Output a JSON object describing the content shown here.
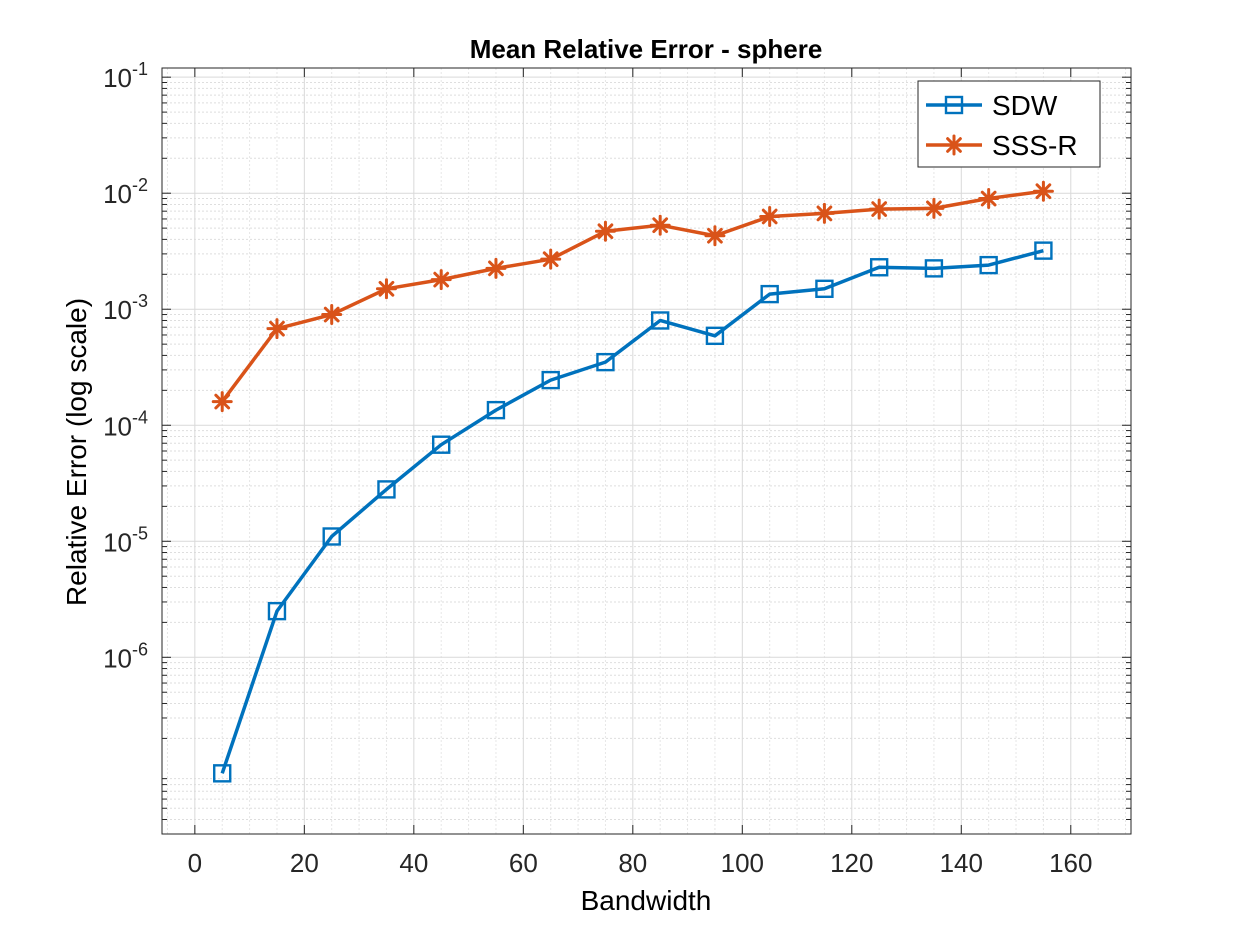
{
  "chart_data": {
    "type": "line",
    "title": "Mean Relative Error - sphere",
    "xlabel": "Bandwidth",
    "ylabel": "Relative Error (log scale)",
    "yscale": "log",
    "xlim": [
      -6,
      171
    ],
    "ylim": [
      3e-08,
      0.12
    ],
    "x_ticks": [
      {
        "value": 0,
        "label": "0"
      },
      {
        "value": 20,
        "label": "20"
      },
      {
        "value": 40,
        "label": "40"
      },
      {
        "value": 60,
        "label": "60"
      },
      {
        "value": 80,
        "label": "80"
      },
      {
        "value": 100,
        "label": "100"
      },
      {
        "value": 120,
        "label": "120"
      },
      {
        "value": 140,
        "label": "140"
      },
      {
        "value": 160,
        "label": "160"
      }
    ],
    "y_ticks": [
      {
        "value": 0.1,
        "base": "10",
        "exp": "-1"
      },
      {
        "value": 0.01,
        "base": "10",
        "exp": "-2"
      },
      {
        "value": 0.001,
        "base": "10",
        "exp": "-3"
      },
      {
        "value": 0.0001,
        "base": "10",
        "exp": "-4"
      },
      {
        "value": 1e-05,
        "base": "10",
        "exp": "-5"
      },
      {
        "value": 1e-06,
        "base": "10",
        "exp": "-6"
      }
    ],
    "grid": true,
    "minor_grid": true,
    "legend_position": "top-right",
    "series": [
      {
        "name": "SDW",
        "color": "#0072BD",
        "marker": "square",
        "x": [
          5,
          15,
          25,
          35,
          45,
          55,
          65,
          75,
          85,
          95,
          105,
          115,
          125,
          135,
          145,
          155
        ],
        "values": [
          1e-07,
          2.5e-06,
          1.1e-05,
          2.8e-05,
          6.8e-05,
          0.000135,
          0.000245,
          0.00035,
          0.0008,
          0.00059,
          0.00135,
          0.0015,
          0.0023,
          0.00225,
          0.0024,
          0.0032
        ]
      },
      {
        "name": "SSS-R",
        "color": "#D95319",
        "marker": "asterisk",
        "x": [
          5,
          15,
          25,
          35,
          45,
          55,
          65,
          75,
          85,
          95,
          105,
          115,
          125,
          135,
          145,
          155
        ],
        "values": [
          0.00016,
          0.00068,
          0.0009,
          0.0015,
          0.0018,
          0.00225,
          0.0027,
          0.0047,
          0.0053,
          0.0043,
          0.0063,
          0.0067,
          0.0073,
          0.0074,
          0.009,
          0.0104
        ]
      }
    ]
  }
}
